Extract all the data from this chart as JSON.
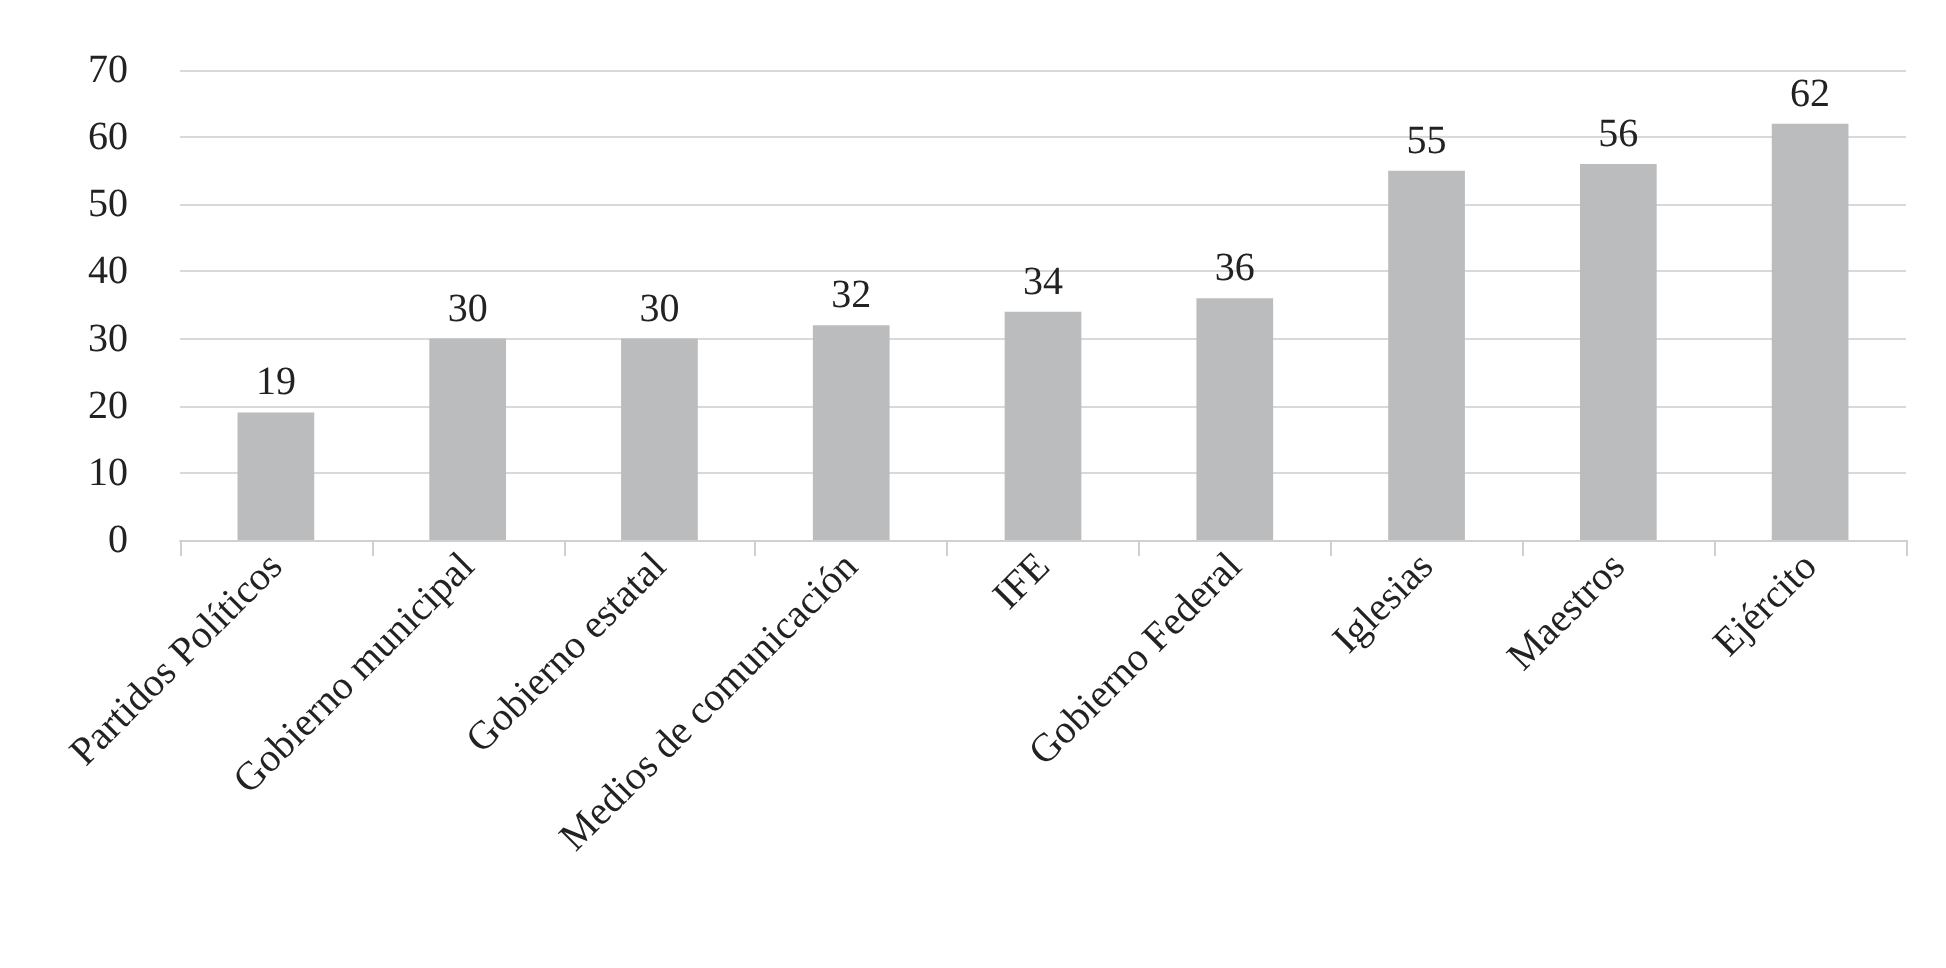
{
  "chart_data": {
    "type": "bar",
    "categories": [
      "Partidos Políticos",
      "Gobierno municipal",
      "Gobierno estatal",
      "Medios de comunicación",
      "IFE",
      "Gobierno Federal",
      "Iglesias",
      "Maestros",
      "Ejército"
    ],
    "values": [
      19,
      30,
      30,
      32,
      34,
      36,
      55,
      56,
      62
    ],
    "color": "#bbbcbe",
    "ylim": [
      0,
      70
    ],
    "yticks": [
      0,
      10,
      20,
      30,
      40,
      50,
      60,
      70
    ],
    "grid": "y",
    "data_labels": true
  }
}
